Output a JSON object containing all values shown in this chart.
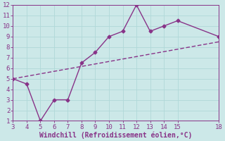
{
  "x": [
    3,
    4,
    5,
    6,
    7,
    8,
    9,
    10,
    11,
    12,
    13,
    14,
    15,
    18
  ],
  "y": [
    5,
    4.5,
    1,
    3,
    3,
    6.5,
    7.5,
    9,
    9.5,
    12,
    9.5,
    10,
    10.5,
    9
  ],
  "trend_x": [
    3,
    18
  ],
  "trend_y": [
    5,
    8.5
  ],
  "xlim": [
    3,
    18
  ],
  "ylim": [
    1,
    12
  ],
  "xticks": [
    3,
    4,
    5,
    6,
    7,
    8,
    9,
    10,
    11,
    12,
    13,
    14,
    15,
    18
  ],
  "yticks": [
    1,
    2,
    3,
    4,
    5,
    6,
    7,
    8,
    9,
    10,
    11,
    12
  ],
  "xlabel": "Windchill (Refroidissement éolien,°C)",
  "line_color": "#883388",
  "bg_color": "#cce8e8",
  "grid_color": "#b0d8d8",
  "tick_label_color": "#883388",
  "xlabel_color": "#883388",
  "marker": "D",
  "marker_size": 2.5,
  "line_width": 1.0,
  "tick_fontsize": 6.5,
  "xlabel_fontsize": 7
}
